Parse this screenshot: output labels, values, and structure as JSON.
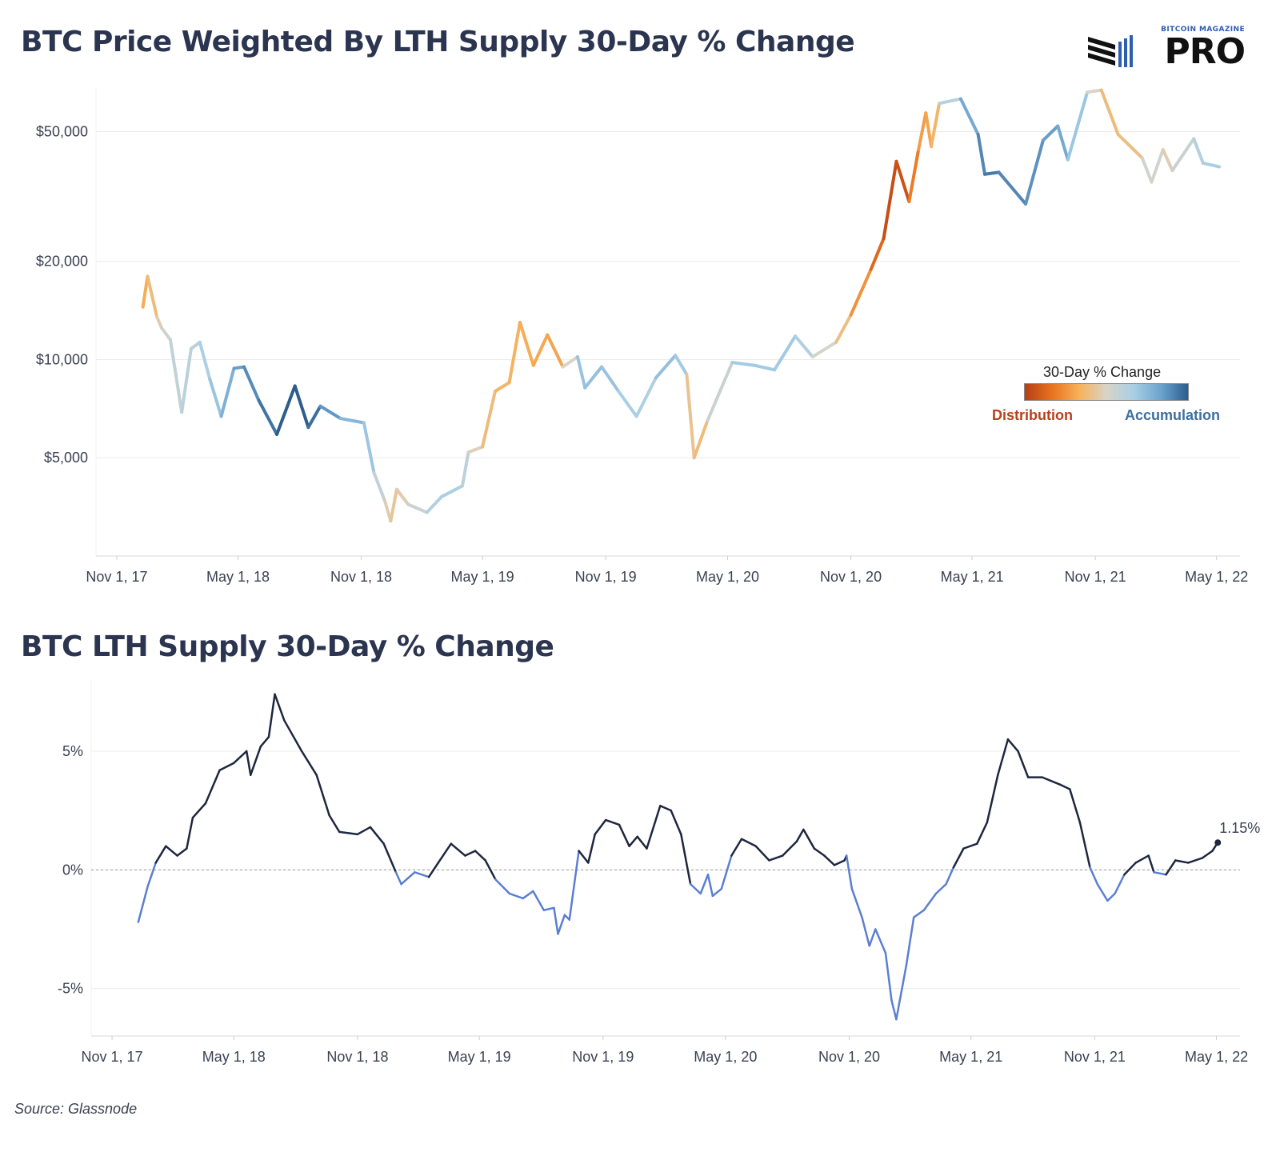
{
  "header": {
    "title": "BTC Price Weighted By LTH Supply 30-Day % Change",
    "subtitle": "BTC LTH Supply 30-Day % Change",
    "brand_small": "BITCOIN MAGAZINE",
    "brand_big": "PRO"
  },
  "legend": {
    "title": "30-Day % Change",
    "left_label": "Distribution",
    "right_label": "Accumulation",
    "colors": [
      "#b63e14",
      "#e8731e",
      "#f7b15a",
      "#d8d4c8",
      "#a9cfe4",
      "#6da3cf",
      "#2b5d8d"
    ]
  },
  "footer": {
    "source": "Source: Glassnode"
  },
  "chart_data": [
    {
      "type": "line",
      "title": "BTC Price Weighted By LTH Supply 30-Day % Change",
      "x_ticks": [
        "Nov 1, 17",
        "May 1, 18",
        "Nov 1, 18",
        "May 1, 19",
        "Nov 1, 19",
        "May 1, 20",
        "Nov 1, 20",
        "May 1, 21",
        "Nov 1, 21",
        "May 1, 22"
      ],
      "y_scale": "log",
      "y_ticks": [
        {
          "value": 5000,
          "label": "$5,000"
        },
        {
          "value": 10000,
          "label": "$10,000"
        },
        {
          "value": 20000,
          "label": "$20,000"
        },
        {
          "value": 50000,
          "label": "$50,000"
        }
      ],
      "ylim": [
        2500,
        68000
      ],
      "x_range": [
        "2017-10-01",
        "2022-06-05"
      ],
      "color_encoding": "30-day % change of LTH supply (orange = distribution, blue = accumulation)",
      "points": [
        {
          "x": "2017-12-10",
          "y": 14500,
          "c": -1.0
        },
        {
          "x": "2017-12-17",
          "y": 18000,
          "c": -0.8
        },
        {
          "x": "2017-12-31",
          "y": 13500,
          "c": -0.3
        },
        {
          "x": "2018-01-07",
          "y": 12500,
          "c": 0.0
        },
        {
          "x": "2018-01-20",
          "y": 11500,
          "c": 0.3
        },
        {
          "x": "2018-02-06",
          "y": 6900,
          "c": 0.5
        },
        {
          "x": "2018-02-20",
          "y": 10800,
          "c": 0.5
        },
        {
          "x": "2018-03-05",
          "y": 11300,
          "c": 0.6
        },
        {
          "x": "2018-03-20",
          "y": 8700,
          "c": 0.9
        },
        {
          "x": "2018-04-06",
          "y": 6700,
          "c": 1.5
        },
        {
          "x": "2018-04-25",
          "y": 9400,
          "c": 2.5
        },
        {
          "x": "2018-05-10",
          "y": 9500,
          "c": 3.0
        },
        {
          "x": "2018-06-01",
          "y": 7500,
          "c": 4.0
        },
        {
          "x": "2018-06-28",
          "y": 5900,
          "c": 5.0
        },
        {
          "x": "2018-07-25",
          "y": 8300,
          "c": 6.0
        },
        {
          "x": "2018-08-14",
          "y": 6200,
          "c": 5.5
        },
        {
          "x": "2018-09-01",
          "y": 7200,
          "c": 4.0
        },
        {
          "x": "2018-10-01",
          "y": 6600,
          "c": 2.0
        },
        {
          "x": "2018-11-05",
          "y": 6400,
          "c": 1.5
        },
        {
          "x": "2018-11-20",
          "y": 4500,
          "c": 0.8
        },
        {
          "x": "2018-12-06",
          "y": 3700,
          "c": 0.0
        },
        {
          "x": "2018-12-15",
          "y": 3200,
          "c": -0.3
        },
        {
          "x": "2018-12-24",
          "y": 4000,
          "c": -0.4
        },
        {
          "x": "2019-01-10",
          "y": 3600,
          "c": 0.0
        },
        {
          "x": "2019-02-07",
          "y": 3400,
          "c": 0.5
        },
        {
          "x": "2019-03-01",
          "y": 3800,
          "c": 0.8
        },
        {
          "x": "2019-04-01",
          "y": 4100,
          "c": 0.8
        },
        {
          "x": "2019-04-10",
          "y": 5200,
          "c": 0.2
        },
        {
          "x": "2019-05-01",
          "y": 5400,
          "c": -0.4
        },
        {
          "x": "2019-05-20",
          "y": 8000,
          "c": -0.7
        },
        {
          "x": "2019-06-10",
          "y": 8500,
          "c": -0.7
        },
        {
          "x": "2019-06-26",
          "y": 13000,
          "c": -0.8
        },
        {
          "x": "2019-07-16",
          "y": 9600,
          "c": -1.0
        },
        {
          "x": "2019-08-06",
          "y": 11900,
          "c": -1.1
        },
        {
          "x": "2019-08-29",
          "y": 9500,
          "c": -1.2
        },
        {
          "x": "2019-09-20",
          "y": 10200,
          "c": 1.2
        },
        {
          "x": "2019-10-01",
          "y": 8200,
          "c": 1.3
        },
        {
          "x": "2019-10-26",
          "y": 9500,
          "c": 1.5
        },
        {
          "x": "2019-11-20",
          "y": 8000,
          "c": 1.0
        },
        {
          "x": "2019-12-17",
          "y": 6700,
          "c": 0.6
        },
        {
          "x": "2020-01-15",
          "y": 8800,
          "c": 0.8
        },
        {
          "x": "2020-02-13",
          "y": 10300,
          "c": 2.0
        },
        {
          "x": "2020-03-01",
          "y": 9000,
          "c": 0.0
        },
        {
          "x": "2020-03-12",
          "y": 5000,
          "c": -0.8
        },
        {
          "x": "2020-04-01",
          "y": 6500,
          "c": -0.3
        },
        {
          "x": "2020-05-08",
          "y": 9800,
          "c": 0.8
        },
        {
          "x": "2020-06-10",
          "y": 9600,
          "c": 1.0
        },
        {
          "x": "2020-07-10",
          "y": 9300,
          "c": 1.0
        },
        {
          "x": "2020-08-10",
          "y": 11800,
          "c": 1.0
        },
        {
          "x": "2020-09-05",
          "y": 10200,
          "c": 0.3
        },
        {
          "x": "2020-10-10",
          "y": 11300,
          "c": -0.2
        },
        {
          "x": "2020-11-01",
          "y": 13700,
          "c": -0.8
        },
        {
          "x": "2020-12-01",
          "y": 18900,
          "c": -2.5
        },
        {
          "x": "2020-12-20",
          "y": 23500,
          "c": -3.5
        },
        {
          "x": "2021-01-08",
          "y": 40500,
          "c": -5.0
        },
        {
          "x": "2021-01-27",
          "y": 30500,
          "c": -3.0
        },
        {
          "x": "2021-02-10",
          "y": 44000,
          "c": -1.5
        },
        {
          "x": "2021-02-21",
          "y": 57000,
          "c": -1.2
        },
        {
          "x": "2021-03-01",
          "y": 45000,
          "c": -1.0
        },
        {
          "x": "2021-03-13",
          "y": 61000,
          "c": -0.4
        },
        {
          "x": "2021-04-14",
          "y": 63000,
          "c": 1.5
        },
        {
          "x": "2021-05-10",
          "y": 49000,
          "c": 3.0
        },
        {
          "x": "2021-05-20",
          "y": 37000,
          "c": 4.5
        },
        {
          "x": "2021-06-10",
          "y": 37500,
          "c": 4.0
        },
        {
          "x": "2021-07-20",
          "y": 30000,
          "c": 3.5
        },
        {
          "x": "2021-08-15",
          "y": 47000,
          "c": 3.0
        },
        {
          "x": "2021-09-06",
          "y": 52000,
          "c": 2.5
        },
        {
          "x": "2021-09-21",
          "y": 41000,
          "c": 2.0
        },
        {
          "x": "2021-10-20",
          "y": 66000,
          "c": 0.3
        },
        {
          "x": "2021-11-10",
          "y": 67000,
          "c": -0.3
        },
        {
          "x": "2021-12-05",
          "y": 49000,
          "c": -0.8
        },
        {
          "x": "2022-01-10",
          "y": 41500,
          "c": -0.2
        },
        {
          "x": "2022-01-24",
          "y": 35000,
          "c": 0.5
        },
        {
          "x": "2022-02-10",
          "y": 44000,
          "c": -0.3
        },
        {
          "x": "2022-02-24",
          "y": 38000,
          "c": 0.0
        },
        {
          "x": "2022-03-28",
          "y": 47500,
          "c": 0.5
        },
        {
          "x": "2022-04-11",
          "y": 40000,
          "c": 0.8
        },
        {
          "x": "2022-05-05",
          "y": 39000,
          "c": 0.8
        }
      ]
    },
    {
      "type": "line",
      "title": "BTC LTH Supply 30-Day % Change",
      "x_ticks": [
        "Nov 1, 17",
        "May 1, 18",
        "Nov 1, 18",
        "May 1, 19",
        "Nov 1, 19",
        "May 1, 20",
        "Nov 1, 20",
        "May 1, 21",
        "Nov 1, 21",
        "May 1, 22"
      ],
      "y_ticks": [
        {
          "value": -5,
          "label": "-5%"
        },
        {
          "value": 0,
          "label": "0%"
        },
        {
          "value": 5,
          "label": "5%"
        }
      ],
      "ylim": [
        -7,
        8
      ],
      "x_range": [
        "2017-10-01",
        "2022-06-05"
      ],
      "positive_color": "#1e2740",
      "negative_color": "#5b7fd0",
      "end_label": "1.15%",
      "points": [
        {
          "x": "2017-12-10",
          "y": -2.2
        },
        {
          "x": "2017-12-24",
          "y": -0.7
        },
        {
          "x": "2018-01-05",
          "y": 0.3
        },
        {
          "x": "2018-01-20",
          "y": 1.0
        },
        {
          "x": "2018-02-06",
          "y": 0.6
        },
        {
          "x": "2018-02-20",
          "y": 0.9
        },
        {
          "x": "2018-03-01",
          "y": 2.2
        },
        {
          "x": "2018-03-20",
          "y": 2.8
        },
        {
          "x": "2018-04-10",
          "y": 4.2
        },
        {
          "x": "2018-05-01",
          "y": 4.5
        },
        {
          "x": "2018-05-20",
          "y": 5.0
        },
        {
          "x": "2018-05-26",
          "y": 4.0
        },
        {
          "x": "2018-06-10",
          "y": 5.2
        },
        {
          "x": "2018-06-22",
          "y": 5.6
        },
        {
          "x": "2018-07-01",
          "y": 7.4
        },
        {
          "x": "2018-07-15",
          "y": 6.3
        },
        {
          "x": "2018-08-10",
          "y": 5.0
        },
        {
          "x": "2018-09-01",
          "y": 4.0
        },
        {
          "x": "2018-09-20",
          "y": 2.3
        },
        {
          "x": "2018-10-05",
          "y": 1.6
        },
        {
          "x": "2018-11-01",
          "y": 1.5
        },
        {
          "x": "2018-11-20",
          "y": 1.8
        },
        {
          "x": "2018-12-10",
          "y": 1.1
        },
        {
          "x": "2018-12-28",
          "y": -0.1
        },
        {
          "x": "2019-01-05",
          "y": -0.6
        },
        {
          "x": "2019-01-25",
          "y": -0.1
        },
        {
          "x": "2019-02-15",
          "y": -0.3
        },
        {
          "x": "2019-03-01",
          "y": 0.3
        },
        {
          "x": "2019-03-20",
          "y": 1.1
        },
        {
          "x": "2019-04-10",
          "y": 0.6
        },
        {
          "x": "2019-04-25",
          "y": 0.8
        },
        {
          "x": "2019-05-10",
          "y": 0.4
        },
        {
          "x": "2019-05-25",
          "y": -0.4
        },
        {
          "x": "2019-06-15",
          "y": -1.0
        },
        {
          "x": "2019-07-05",
          "y": -1.2
        },
        {
          "x": "2019-07-20",
          "y": -0.9
        },
        {
          "x": "2019-08-05",
          "y": -1.7
        },
        {
          "x": "2019-08-20",
          "y": -1.6
        },
        {
          "x": "2019-08-26",
          "y": -2.7
        },
        {
          "x": "2019-09-05",
          "y": -1.9
        },
        {
          "x": "2019-09-12",
          "y": -2.1
        },
        {
          "x": "2019-09-26",
          "y": 0.8
        },
        {
          "x": "2019-10-10",
          "y": 0.3
        },
        {
          "x": "2019-10-20",
          "y": 1.5
        },
        {
          "x": "2019-11-05",
          "y": 2.1
        },
        {
          "x": "2019-11-25",
          "y": 1.9
        },
        {
          "x": "2019-12-10",
          "y": 1.0
        },
        {
          "x": "2019-12-22",
          "y": 1.4
        },
        {
          "x": "2020-01-05",
          "y": 0.9
        },
        {
          "x": "2020-01-25",
          "y": 2.7
        },
        {
          "x": "2020-02-10",
          "y": 2.5
        },
        {
          "x": "2020-02-25",
          "y": 1.5
        },
        {
          "x": "2020-03-10",
          "y": -0.6
        },
        {
          "x": "2020-03-25",
          "y": -1.0
        },
        {
          "x": "2020-04-05",
          "y": -0.2
        },
        {
          "x": "2020-04-12",
          "y": -1.1
        },
        {
          "x": "2020-04-25",
          "y": -0.8
        },
        {
          "x": "2020-05-10",
          "y": 0.6
        },
        {
          "x": "2020-05-25",
          "y": 1.3
        },
        {
          "x": "2020-06-15",
          "y": 1.0
        },
        {
          "x": "2020-07-05",
          "y": 0.4
        },
        {
          "x": "2020-07-25",
          "y": 0.6
        },
        {
          "x": "2020-08-15",
          "y": 1.2
        },
        {
          "x": "2020-08-25",
          "y": 1.7
        },
        {
          "x": "2020-09-10",
          "y": 0.9
        },
        {
          "x": "2020-09-25",
          "y": 0.6
        },
        {
          "x": "2020-10-10",
          "y": 0.2
        },
        {
          "x": "2020-10-25",
          "y": 0.4
        },
        {
          "x": "2020-10-28",
          "y": 0.6
        },
        {
          "x": "2020-11-05",
          "y": -0.8
        },
        {
          "x": "2020-11-20",
          "y": -2.0
        },
        {
          "x": "2020-12-01",
          "y": -3.2
        },
        {
          "x": "2020-12-10",
          "y": -2.5
        },
        {
          "x": "2020-12-25",
          "y": -3.5
        },
        {
          "x": "2021-01-03",
          "y": -5.5
        },
        {
          "x": "2021-01-10",
          "y": -6.3
        },
        {
          "x": "2021-01-25",
          "y": -4.0
        },
        {
          "x": "2021-02-05",
          "y": -2.0
        },
        {
          "x": "2021-02-20",
          "y": -1.7
        },
        {
          "x": "2021-03-10",
          "y": -1.0
        },
        {
          "x": "2021-03-25",
          "y": -0.6
        },
        {
          "x": "2021-04-05",
          "y": 0.1
        },
        {
          "x": "2021-04-20",
          "y": 0.9
        },
        {
          "x": "2021-05-10",
          "y": 1.1
        },
        {
          "x": "2021-05-25",
          "y": 2.0
        },
        {
          "x": "2021-06-10",
          "y": 4.0
        },
        {
          "x": "2021-06-25",
          "y": 5.5
        },
        {
          "x": "2021-07-10",
          "y": 5.0
        },
        {
          "x": "2021-07-25",
          "y": 3.9
        },
        {
          "x": "2021-08-15",
          "y": 3.9
        },
        {
          "x": "2021-09-10",
          "y": 3.6
        },
        {
          "x": "2021-09-25",
          "y": 3.4
        },
        {
          "x": "2021-10-10",
          "y": 2.0
        },
        {
          "x": "2021-10-25",
          "y": 0.1
        },
        {
          "x": "2021-11-05",
          "y": -0.6
        },
        {
          "x": "2021-11-20",
          "y": -1.3
        },
        {
          "x": "2021-12-01",
          "y": -1.0
        },
        {
          "x": "2021-12-15",
          "y": -0.2
        },
        {
          "x": "2022-01-01",
          "y": 0.3
        },
        {
          "x": "2022-01-20",
          "y": 0.6
        },
        {
          "x": "2022-01-28",
          "y": -0.1
        },
        {
          "x": "2022-02-15",
          "y": -0.2
        },
        {
          "x": "2022-03-01",
          "y": 0.4
        },
        {
          "x": "2022-03-20",
          "y": 0.3
        },
        {
          "x": "2022-04-10",
          "y": 0.5
        },
        {
          "x": "2022-04-25",
          "y": 0.8
        },
        {
          "x": "2022-05-03",
          "y": 1.15
        }
      ]
    }
  ]
}
